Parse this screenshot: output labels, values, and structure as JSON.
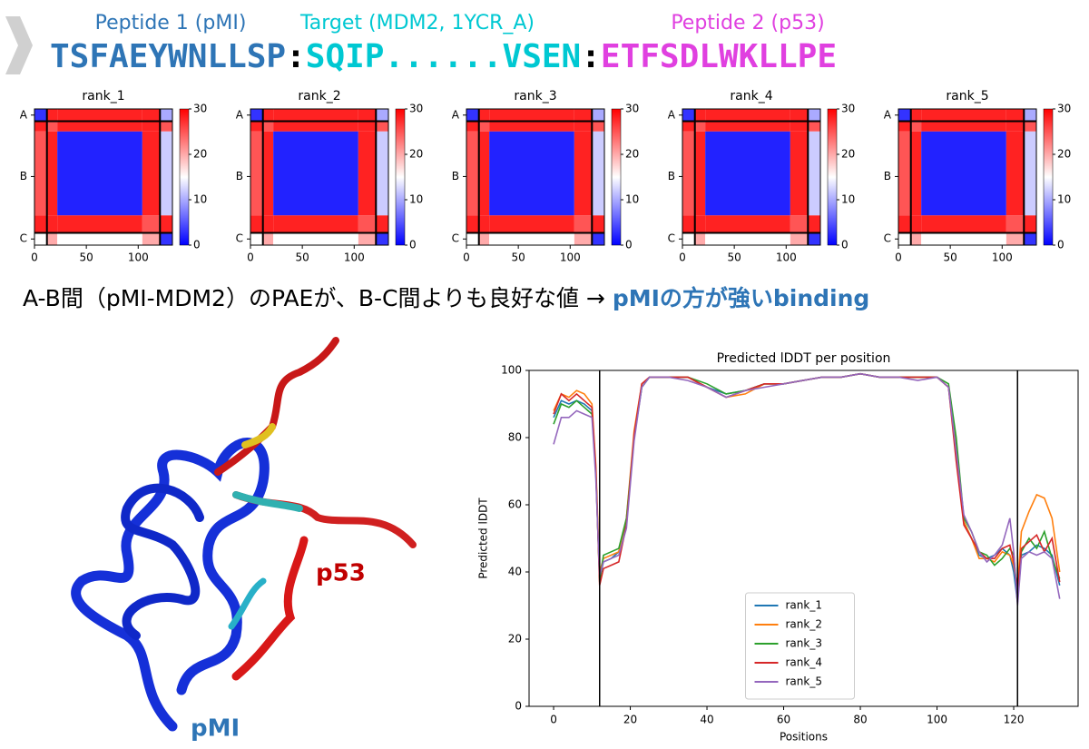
{
  "header": {
    "labels": [
      {
        "text": "Peptide 1 (pMI)",
        "color": "#2e75b6"
      },
      {
        "text": "Target (MDM2, 1YCR_A)",
        "color": "#00c8d2"
      },
      {
        "text": "Peptide 2 (p53)",
        "color": "#e040e0"
      }
    ],
    "sequence": [
      {
        "text": "TSFAEYWNLLSP",
        "color": "#2e75b6"
      },
      {
        "text": ":",
        "color": "#000000"
      },
      {
        "text": "SQIP......VSEN",
        "color": "#00c8d2"
      },
      {
        "text": ":",
        "color": "#000000"
      },
      {
        "text": "ETFSDLWKLLPE",
        "color": "#e040e0"
      }
    ]
  },
  "caption": {
    "text": "A-B間（pMI-MDM2）のPAEが、B-C間よりも良好な値 → ",
    "highlight": "pMIの方が強いbinding"
  },
  "structure_labels": {
    "p53": "p53",
    "pmi": "pMI"
  },
  "chart_data": [
    {
      "type": "heatmap",
      "title": "rank_1",
      "bins": [
        0,
        12,
        22,
        104,
        121,
        133
      ],
      "values": [
        [
          3,
          28,
          28,
          28,
          10
        ],
        [
          28,
          25,
          28,
          28,
          25
        ],
        [
          25,
          28,
          2,
          28,
          12
        ],
        [
          28,
          28,
          28,
          25,
          28
        ],
        [
          15,
          20,
          15,
          20,
          3
        ]
      ],
      "xlim": [
        0,
        133
      ],
      "ylim": [
        0,
        133
      ],
      "xticks": [
        0,
        50,
        100
      ],
      "yticks": [
        {
          "value": 6,
          "label": "A"
        },
        {
          "value": 66,
          "label": "B"
        },
        {
          "value": 127,
          "label": "C"
        }
      ],
      "clim": [
        0,
        30
      ],
      "cticks": [
        0,
        10,
        20,
        30
      ],
      "colormap": "bwr",
      "vlines": [
        12,
        121
      ]
    },
    {
      "type": "heatmap",
      "title": "rank_2",
      "bins": [
        0,
        12,
        22,
        104,
        121,
        133
      ],
      "values": [
        [
          3,
          28,
          28,
          28,
          10
        ],
        [
          28,
          25,
          28,
          28,
          25
        ],
        [
          25,
          28,
          2,
          28,
          12
        ],
        [
          28,
          28,
          28,
          25,
          28
        ],
        [
          15,
          20,
          15,
          20,
          3
        ]
      ],
      "xlim": [
        0,
        133
      ],
      "ylim": [
        0,
        133
      ],
      "xticks": [
        0,
        50,
        100
      ],
      "yticks": [
        {
          "value": 6,
          "label": "A"
        },
        {
          "value": 66,
          "label": "B"
        },
        {
          "value": 127,
          "label": "C"
        }
      ],
      "clim": [
        0,
        30
      ],
      "cticks": [
        0,
        10,
        20,
        30
      ],
      "colormap": "bwr",
      "vlines": [
        12,
        121
      ]
    },
    {
      "type": "heatmap",
      "title": "rank_3",
      "bins": [
        0,
        12,
        22,
        104,
        121,
        133
      ],
      "values": [
        [
          3,
          28,
          28,
          28,
          10
        ],
        [
          28,
          25,
          28,
          28,
          25
        ],
        [
          25,
          28,
          2,
          28,
          12
        ],
        [
          28,
          28,
          28,
          25,
          28
        ],
        [
          15,
          20,
          15,
          20,
          3
        ]
      ],
      "xlim": [
        0,
        133
      ],
      "ylim": [
        0,
        133
      ],
      "xticks": [
        0,
        50,
        100
      ],
      "yticks": [
        {
          "value": 6,
          "label": "A"
        },
        {
          "value": 66,
          "label": "B"
        },
        {
          "value": 127,
          "label": "C"
        }
      ],
      "clim": [
        0,
        30
      ],
      "cticks": [
        0,
        10,
        20,
        30
      ],
      "colormap": "bwr",
      "vlines": [
        12,
        121
      ]
    },
    {
      "type": "heatmap",
      "title": "rank_4",
      "bins": [
        0,
        12,
        22,
        104,
        121,
        133
      ],
      "values": [
        [
          3,
          28,
          28,
          28,
          10
        ],
        [
          28,
          25,
          28,
          28,
          25
        ],
        [
          25,
          28,
          2,
          28,
          12
        ],
        [
          28,
          28,
          28,
          25,
          28
        ],
        [
          15,
          20,
          15,
          20,
          3
        ]
      ],
      "xlim": [
        0,
        133
      ],
      "ylim": [
        0,
        133
      ],
      "xticks": [
        0,
        50,
        100
      ],
      "yticks": [
        {
          "value": 6,
          "label": "A"
        },
        {
          "value": 66,
          "label": "B"
        },
        {
          "value": 127,
          "label": "C"
        }
      ],
      "clim": [
        0,
        30
      ],
      "cticks": [
        0,
        10,
        20,
        30
      ],
      "colormap": "bwr",
      "vlines": [
        12,
        121
      ]
    },
    {
      "type": "heatmap",
      "title": "rank_5",
      "bins": [
        0,
        12,
        22,
        104,
        121,
        133
      ],
      "values": [
        [
          3,
          28,
          28,
          28,
          10
        ],
        [
          28,
          25,
          28,
          28,
          25
        ],
        [
          25,
          28,
          2,
          28,
          12
        ],
        [
          28,
          28,
          28,
          25,
          28
        ],
        [
          15,
          20,
          15,
          20,
          3
        ]
      ],
      "xlim": [
        0,
        133
      ],
      "ylim": [
        0,
        133
      ],
      "xticks": [
        0,
        50,
        100
      ],
      "yticks": [
        {
          "value": 6,
          "label": "A"
        },
        {
          "value": 66,
          "label": "B"
        },
        {
          "value": 127,
          "label": "C"
        }
      ],
      "clim": [
        0,
        30
      ],
      "cticks": [
        0,
        10,
        20,
        30
      ],
      "colormap": "bwr",
      "vlines": [
        12,
        121
      ]
    },
    {
      "type": "line",
      "title": "Predicted lDDT per position",
      "xlabel": "Positions",
      "ylabel": "Predicted lDDT",
      "x": [
        0,
        2,
        4,
        6,
        8,
        10,
        11,
        12,
        13,
        15,
        17,
        19,
        21,
        23,
        25,
        30,
        35,
        40,
        45,
        50,
        55,
        60,
        65,
        70,
        75,
        80,
        85,
        90,
        95,
        100,
        103,
        105,
        107,
        109,
        111,
        113,
        115,
        117,
        119,
        120,
        121,
        122,
        124,
        126,
        128,
        130,
        132
      ],
      "series": [
        {
          "name": "rank_1",
          "color": "#1f77b4",
          "values": [
            86,
            91,
            90,
            91,
            90,
            88,
            70,
            38,
            43,
            44,
            46,
            55,
            80,
            95,
            98,
            98,
            98,
            95,
            93,
            94,
            96,
            96,
            97,
            98,
            98,
            99,
            98,
            98,
            98,
            98,
            95,
            75,
            55,
            50,
            45,
            44,
            45,
            47,
            45,
            40,
            31,
            45,
            46,
            48,
            47,
            45,
            36
          ]
        },
        {
          "name": "rank_2",
          "color": "#ff7f0e",
          "values": [
            88,
            93,
            92,
            94,
            93,
            90,
            72,
            40,
            44,
            45,
            46,
            56,
            82,
            96,
            98,
            98,
            98,
            95,
            92,
            93,
            96,
            96,
            97,
            98,
            98,
            99,
            98,
            98,
            98,
            98,
            95,
            78,
            55,
            50,
            44,
            44,
            43,
            46,
            45,
            42,
            35,
            52,
            58,
            63,
            62,
            56,
            40
          ]
        },
        {
          "name": "rank_3",
          "color": "#2ca02c",
          "values": [
            84,
            90,
            89,
            91,
            89,
            87,
            70,
            37,
            45,
            46,
            47,
            56,
            80,
            95,
            98,
            98,
            98,
            96,
            93,
            94,
            96,
            96,
            97,
            98,
            98,
            99,
            98,
            98,
            98,
            98,
            96,
            80,
            56,
            52,
            46,
            45,
            42,
            44,
            47,
            45,
            33,
            46,
            50,
            47,
            52,
            44,
            38
          ]
        },
        {
          "name": "rank_4",
          "color": "#d62728",
          "values": [
            87,
            93,
            91,
            93,
            91,
            89,
            71,
            36,
            41,
            42,
            43,
            54,
            81,
            96,
            98,
            98,
            98,
            95,
            92,
            94,
            96,
            96,
            97,
            98,
            98,
            99,
            98,
            98,
            98,
            98,
            95,
            73,
            54,
            50,
            46,
            44,
            44,
            47,
            48,
            43,
            34,
            47,
            49,
            51,
            46,
            50,
            37
          ]
        },
        {
          "name": "rank_5",
          "color": "#9467bd",
          "values": [
            78,
            86,
            86,
            88,
            87,
            86,
            68,
            39,
            43,
            44,
            45,
            53,
            79,
            95,
            98,
            98,
            97,
            95,
            92,
            94,
            95,
            96,
            97,
            98,
            98,
            99,
            98,
            98,
            97,
            98,
            95,
            76,
            57,
            52,
            46,
            43,
            45,
            48,
            56,
            46,
            30,
            44,
            46,
            45,
            46,
            44,
            32
          ]
        }
      ],
      "xlim": [
        -6.4,
        136.8
      ],
      "ylim": [
        0,
        100
      ],
      "xticks": [
        0,
        20,
        40,
        60,
        80,
        100,
        120
      ],
      "yticks": [
        0,
        20,
        40,
        60,
        80,
        100
      ],
      "vlines": [
        12,
        121
      ],
      "legend": "lower center"
    }
  ]
}
